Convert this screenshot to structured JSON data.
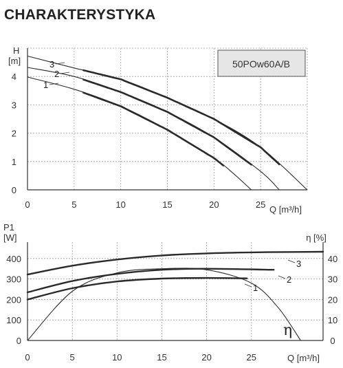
{
  "heading": "CHARAKTERYSTYKA",
  "model_box": {
    "label": "50POw60A/B",
    "fill": "#e6e6e6"
  },
  "colors": {
    "curve": "#2a2a2a",
    "grid": "#9a9a9a"
  },
  "chart_data": [
    {
      "type": "line",
      "ylabel_top": "H",
      "yunit": "[m]",
      "xlabel": "Q [m³/h]",
      "xlim": [
        0,
        30
      ],
      "ylim": [
        0,
        5
      ],
      "xticks": [
        "0",
        "5",
        "10",
        "15",
        "20",
        "25"
      ],
      "yticks": [
        "0",
        "1",
        "2",
        "3",
        "4"
      ],
      "grid": true,
      "series": [
        {
          "name": "1",
          "x": [
            0,
            5,
            10,
            15,
            20,
            22,
            24
          ],
          "y": [
            3.98,
            3.55,
            2.95,
            2.12,
            1.12,
            0.6,
            0.0
          ]
        },
        {
          "name": "2",
          "x": [
            0,
            5,
            10,
            15,
            20,
            25,
            27
          ],
          "y": [
            4.32,
            4.0,
            3.45,
            2.75,
            1.85,
            0.65,
            0.0
          ]
        },
        {
          "name": "3",
          "x": [
            0,
            5,
            10,
            15,
            20,
            25,
            30
          ],
          "y": [
            4.72,
            4.3,
            3.9,
            3.25,
            2.5,
            1.5,
            0.0
          ]
        }
      ]
    },
    {
      "type": "line",
      "ylabel_top": "P1",
      "yunit": "[W]",
      "y2label": "η [%]",
      "xlabel": "Q [m³/h]",
      "xlim": [
        0,
        33
      ],
      "ylim": [
        0,
        480
      ],
      "y2lim": [
        0,
        48
      ],
      "xticks": [
        "0",
        "5",
        "10",
        "15",
        "20",
        "25"
      ],
      "yticks": [
        "0",
        "100",
        "200",
        "300",
        "400"
      ],
      "y2ticks": [
        "0",
        "10",
        "20",
        "30",
        "40"
      ],
      "grid": true,
      "power_series": [
        {
          "name": "1",
          "x": [
            0,
            5,
            10,
            15,
            20,
            24.5
          ],
          "y": [
            200,
            255,
            288,
            302,
            305,
            303
          ]
        },
        {
          "name": "2",
          "x": [
            0,
            5,
            10,
            15,
            20,
            27.5
          ],
          "y": [
            235,
            290,
            325,
            345,
            350,
            345
          ]
        },
        {
          "name": "3",
          "x": [
            0,
            5,
            10,
            15,
            20,
            25,
            30,
            33
          ],
          "y": [
            322,
            365,
            395,
            415,
            425,
            430,
            432,
            433
          ]
        }
      ],
      "efficiency_series": {
        "name": "η",
        "x": [
          0,
          5,
          10,
          15,
          20,
          25,
          28,
          30.5
        ],
        "y": [
          0,
          24,
          33,
          35,
          34.5,
          28,
          16,
          0
        ]
      }
    }
  ]
}
